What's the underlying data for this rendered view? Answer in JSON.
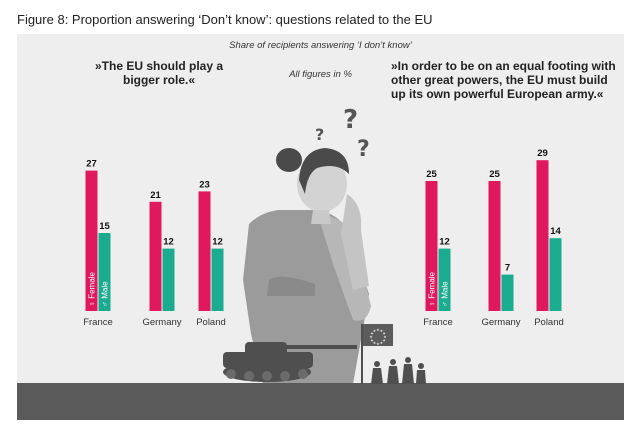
{
  "figure_title": "Figure 8: Proportion answering ‘Don’t know’: questions related to the EU",
  "subtitle": "Share of recipients answering ‘I don’t know’",
  "units_note": "All figures in %",
  "colors": {
    "female": "#e0195e",
    "male": "#1bab8e",
    "panel": "#eeeeee",
    "ground": "#5a5a5a"
  },
  "chart_data": [
    {
      "type": "bar",
      "title_lines": [
        "»The EU should play a",
        "bigger role.«"
      ],
      "categories": [
        "France",
        "Germany",
        "Poland"
      ],
      "series": [
        {
          "name": "Female",
          "values": [
            27,
            21,
            23
          ]
        },
        {
          "name": "Male",
          "values": [
            15,
            12,
            12
          ]
        }
      ],
      "ylim": [
        0,
        30
      ],
      "legend": "inside-first-bars"
    },
    {
      "type": "bar",
      "title_lines": [
        "»In order to be on an equal footing with",
        "other great powers, the EU must build",
        "up its own powerful European army.«"
      ],
      "categories": [
        "France",
        "Germany",
        "Poland"
      ],
      "series": [
        {
          "name": "Female",
          "values": [
            25,
            25,
            29
          ]
        },
        {
          "name": "Male",
          "values": [
            12,
            7,
            14
          ]
        }
      ],
      "ylim": [
        0,
        30
      ],
      "legend": "inside-first-bars"
    }
  ],
  "illustration": {
    "question_marks": [
      "?",
      "?",
      "?"
    ],
    "flag_stars": "★"
  }
}
